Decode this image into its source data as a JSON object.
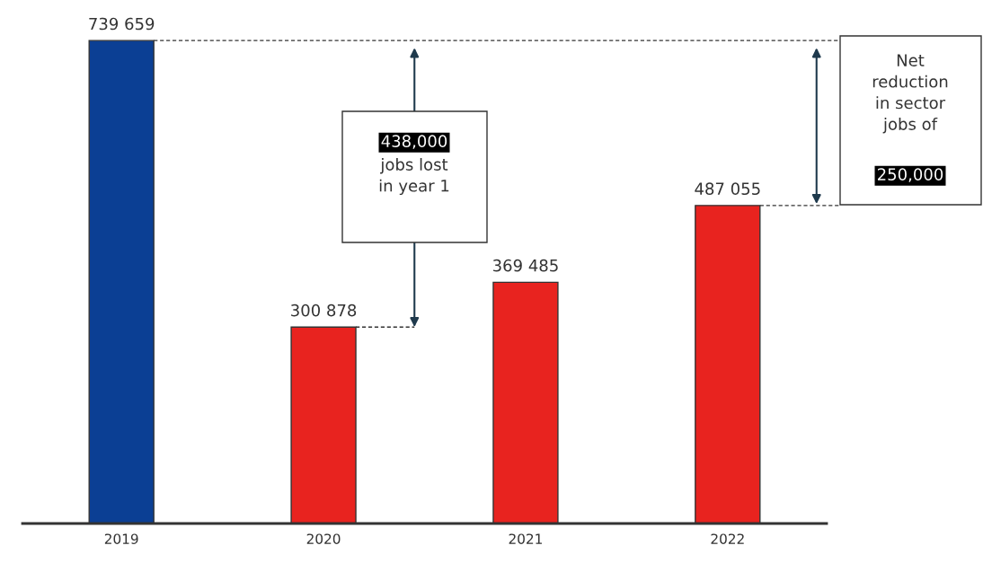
{
  "chart_data": {
    "type": "bar",
    "categories": [
      "2019",
      "2020",
      "2021",
      "2022"
    ],
    "values": [
      739659,
      300878,
      369485,
      487055
    ],
    "colors": [
      "#0b3f94",
      "#e8231f",
      "#e8231f",
      "#e8231f"
    ],
    "value_labels": [
      "739 659",
      "300 878",
      "369 485",
      "487 055"
    ],
    "annotations": [
      "438,000",
      "jobs lost\nin year 1",
      "Net\nreduction\nin sector\njobs of",
      "250,000"
    ],
    "grid": false,
    "legend": false
  }
}
